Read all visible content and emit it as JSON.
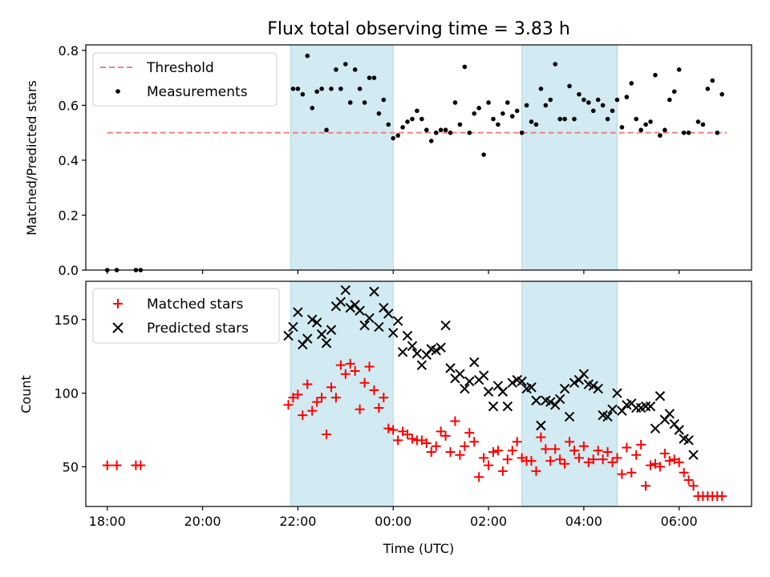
{
  "figure": {
    "title": "Flux total observing time = 3.83 h",
    "xlabel": "Time (UTC)"
  },
  "colors": {
    "band": "#add8e6",
    "threshold": "#f08080",
    "measure": "#000000",
    "matched": "#ff0000",
    "predicted": "#000000",
    "axis": "#000000"
  },
  "chart_data": [
    {
      "type": "scatter",
      "title": "Flux total observing time = 3.83 h",
      "xlabel": "",
      "ylabel": "Matched/Predicted stars",
      "xlim": [
        -6.45,
        7.52
      ],
      "ylim": [
        0.0,
        0.82
      ],
      "yticks": [
        0.0,
        0.2,
        0.4,
        0.6,
        0.8
      ],
      "ytick_labels": [
        "0.0",
        "0.2",
        "0.4",
        "0.6",
        "0.8"
      ],
      "shaded_bands": [
        [
          -2.15,
          0.0
        ],
        [
          2.7,
          4.7
        ]
      ],
      "legend": {
        "position": "top-left",
        "entries": [
          "Threshold",
          "Measurements"
        ]
      },
      "series": [
        {
          "name": "Threshold",
          "kind": "dashed-line",
          "x": [
            -6.0,
            7.0
          ],
          "y": [
            0.5,
            0.5
          ]
        },
        {
          "name": "Measurements",
          "kind": "dot",
          "x": [
            -6.0,
            -5.8,
            -5.4,
            -5.3,
            -2.1,
            -2.0,
            -1.9,
            -1.8,
            -1.7,
            -1.6,
            -1.5,
            -1.4,
            -1.3,
            -1.2,
            -1.1,
            -1.0,
            -0.9,
            -0.8,
            -0.7,
            -0.6,
            -0.5,
            -0.4,
            -0.3,
            -0.2,
            -0.1,
            0.0,
            0.1,
            0.2,
            0.3,
            0.4,
            0.5,
            0.6,
            0.7,
            0.8,
            0.9,
            1.0,
            1.1,
            1.2,
            1.3,
            1.4,
            1.5,
            1.6,
            1.7,
            1.8,
            1.9,
            2.0,
            2.1,
            2.2,
            2.3,
            2.4,
            2.5,
            2.6,
            2.7,
            2.8,
            2.9,
            3.0,
            3.1,
            3.2,
            3.3,
            3.4,
            3.5,
            3.6,
            3.7,
            3.8,
            3.9,
            4.0,
            4.1,
            4.2,
            4.3,
            4.4,
            4.5,
            4.6,
            4.7,
            4.8,
            4.9,
            5.0,
            5.1,
            5.2,
            5.3,
            5.4,
            5.5,
            5.6,
            5.7,
            5.8,
            5.9,
            6.0,
            6.1,
            6.2,
            6.4,
            6.5,
            6.6,
            6.7,
            6.8,
            6.9
          ],
          "y": [
            0.0,
            0.0,
            0.0,
            0.0,
            0.66,
            0.66,
            0.64,
            0.78,
            0.59,
            0.65,
            0.66,
            0.51,
            0.66,
            0.73,
            0.66,
            0.75,
            0.61,
            0.73,
            0.66,
            0.61,
            0.7,
            0.7,
            0.57,
            0.62,
            0.53,
            0.48,
            0.49,
            0.52,
            0.54,
            0.55,
            0.58,
            0.55,
            0.51,
            0.47,
            0.5,
            0.51,
            0.51,
            0.5,
            0.61,
            0.53,
            0.74,
            0.5,
            0.57,
            0.59,
            0.42,
            0.61,
            0.55,
            0.53,
            0.57,
            0.61,
            0.56,
            0.58,
            0.5,
            0.6,
            0.54,
            0.53,
            0.66,
            0.6,
            0.62,
            0.75,
            0.55,
            0.55,
            0.67,
            0.55,
            0.64,
            0.62,
            0.61,
            0.58,
            0.62,
            0.6,
            0.55,
            0.58,
            0.62,
            0.52,
            0.63,
            0.68,
            0.55,
            0.51,
            0.53,
            0.54,
            0.71,
            0.49,
            0.51,
            0.62,
            0.65,
            0.73,
            0.5,
            0.5,
            0.54,
            0.53,
            0.66,
            0.69,
            0.5,
            0.64
          ]
        }
      ]
    },
    {
      "type": "scatter",
      "xlabel": "Time (UTC)",
      "ylabel": "Count",
      "xlim": [
        -6.45,
        7.52
      ],
      "ylim": [
        23,
        176
      ],
      "yticks": [
        50,
        100,
        150
      ],
      "ytick_labels": [
        "50",
        "100",
        "150"
      ],
      "xticks": [
        -6,
        -4,
        -2,
        0,
        2,
        4,
        6
      ],
      "xtick_labels": [
        "18:00",
        "20:00",
        "22:00",
        "00:00",
        "02:00",
        "04:00",
        "06:00"
      ],
      "shaded_bands": [
        [
          -2.15,
          0.0
        ],
        [
          2.7,
          4.7
        ]
      ],
      "legend": {
        "position": "top-left",
        "entries": [
          "Matched stars",
          "Predicted stars"
        ]
      },
      "series": [
        {
          "name": "Matched stars",
          "marker": "plus",
          "x": [
            -6.0,
            -5.8,
            -5.4,
            -5.3,
            -2.2,
            -2.1,
            -2.0,
            -1.9,
            -1.8,
            -1.7,
            -1.6,
            -1.5,
            -1.4,
            -1.3,
            -1.2,
            -1.1,
            -1.0,
            -0.9,
            -0.8,
            -0.7,
            -0.6,
            -0.5,
            -0.4,
            -0.3,
            -0.2,
            -0.1,
            0.0,
            0.1,
            0.2,
            0.3,
            0.4,
            0.5,
            0.6,
            0.7,
            0.8,
            0.9,
            1.0,
            1.1,
            1.2,
            1.3,
            1.4,
            1.5,
            1.6,
            1.7,
            1.8,
            1.9,
            2.0,
            2.1,
            2.2,
            2.3,
            2.4,
            2.5,
            2.6,
            2.7,
            2.8,
            2.9,
            3.0,
            3.1,
            3.2,
            3.3,
            3.4,
            3.5,
            3.6,
            3.7,
            3.8,
            3.9,
            4.0,
            4.1,
            4.2,
            4.3,
            4.4,
            4.5,
            4.6,
            4.7,
            4.8,
            4.9,
            5.0,
            5.1,
            5.2,
            5.3,
            5.4,
            5.5,
            5.6,
            5.7,
            5.8,
            5.9,
            6.0,
            6.1,
            6.2,
            6.3,
            6.4,
            6.5,
            6.6,
            6.7,
            6.8,
            6.9
          ],
          "y": [
            51,
            51,
            51,
            51,
            92,
            97,
            99,
            85,
            106,
            88,
            94,
            97,
            72,
            104,
            97,
            119,
            113,
            120,
            115,
            89,
            107,
            118,
            102,
            90,
            97,
            76,
            75,
            68,
            74,
            72,
            69,
            68,
            68,
            66,
            60,
            64,
            74,
            71,
            60,
            81,
            58,
            64,
            73,
            67,
            43,
            56,
            51,
            60,
            61,
            47,
            55,
            61,
            67,
            56,
            54,
            54,
            47,
            70,
            62,
            54,
            62,
            55,
            52,
            67,
            61,
            56,
            64,
            53,
            55,
            61,
            55,
            60,
            53,
            56,
            45,
            63,
            46,
            58,
            65,
            37,
            51,
            52,
            50,
            59,
            54,
            55,
            53,
            46,
            41,
            37,
            30,
            30,
            30,
            30,
            30,
            30
          ]
        },
        {
          "name": "Predicted stars",
          "marker": "x",
          "x": [
            -2.2,
            -2.1,
            -2.0,
            -1.9,
            -1.8,
            -1.7,
            -1.6,
            -1.5,
            -1.4,
            -1.3,
            -1.2,
            -1.1,
            -1.0,
            -0.9,
            -0.8,
            -0.7,
            -0.6,
            -0.5,
            -0.4,
            -0.3,
            -0.2,
            -0.1,
            0.0,
            0.1,
            0.2,
            0.3,
            0.4,
            0.5,
            0.6,
            0.7,
            0.8,
            0.9,
            1.0,
            1.1,
            1.2,
            1.3,
            1.4,
            1.5,
            1.6,
            1.7,
            1.8,
            1.9,
            2.0,
            2.1,
            2.2,
            2.3,
            2.4,
            2.5,
            2.6,
            2.7,
            2.8,
            2.9,
            3.0,
            3.1,
            3.2,
            3.3,
            3.4,
            3.5,
            3.6,
            3.7,
            3.8,
            3.9,
            4.0,
            4.1,
            4.2,
            4.3,
            4.4,
            4.5,
            4.6,
            4.7,
            4.8,
            4.9,
            5.0,
            5.1,
            5.2,
            5.3,
            5.4,
            5.5,
            5.6,
            5.7,
            5.8,
            5.9,
            6.0,
            6.1,
            6.2,
            6.3
          ],
          "y": [
            139,
            145,
            155,
            133,
            137,
            150,
            148,
            140,
            134,
            143,
            159,
            162,
            170,
            158,
            160,
            156,
            146,
            151,
            169,
            145,
            158,
            154,
            141,
            149,
            128,
            139,
            132,
            127,
            119,
            126,
            130,
            129,
            131,
            146,
            117,
            110,
            113,
            103,
            108,
            121,
            109,
            112,
            101,
            91,
            105,
            101,
            91,
            107,
            109,
            108,
            103,
            104,
            95,
            78,
            95,
            94,
            92,
            96,
            103,
            84,
            107,
            109,
            113,
            106,
            105,
            103,
            85,
            84,
            89,
            100,
            88,
            92,
            93,
            90,
            90,
            91,
            91,
            76,
            98,
            82,
            86,
            79,
            75,
            69,
            68,
            58
          ]
        }
      ]
    }
  ]
}
